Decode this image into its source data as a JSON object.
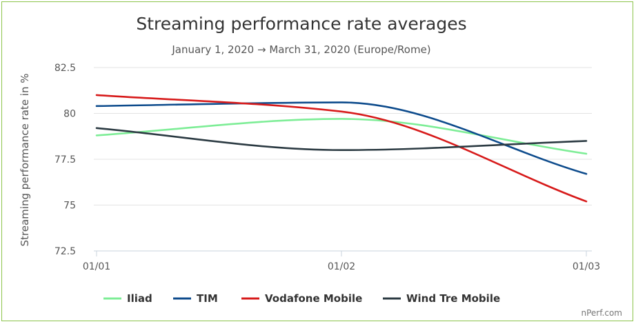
{
  "chart_data": {
    "type": "line",
    "title": "Streaming performance rate averages",
    "subtitle": "January 1, 2020 → March 31, 2020 (Europe/Rome)",
    "ylabel": "Streaming performance rate in %",
    "xlabel": "",
    "ylim": [
      72.5,
      82.5
    ],
    "yticks": [
      "72.5",
      "75",
      "77.5",
      "80",
      "82.5"
    ],
    "x_tick_labels": [
      "01/01",
      "01/02",
      "01/03"
    ],
    "x": [
      "01/01",
      "01/02",
      "01/03"
    ],
    "grid": true,
    "legend_position": "bottom",
    "series": [
      {
        "name": "Iliad",
        "color": "#7ded96",
        "values": [
          78.8,
          79.7,
          77.8
        ]
      },
      {
        "name": "TIM",
        "color": "#0d4b8c",
        "values": [
          80.4,
          80.6,
          76.7
        ]
      },
      {
        "name": "Vodafone Mobile",
        "color": "#d71a1a",
        "values": [
          81.0,
          80.1,
          75.2
        ]
      },
      {
        "name": "Wind Tre Mobile",
        "color": "#2b3a42",
        "values": [
          79.2,
          78.0,
          78.5
        ]
      }
    ],
    "credit": "nPerf.com"
  }
}
